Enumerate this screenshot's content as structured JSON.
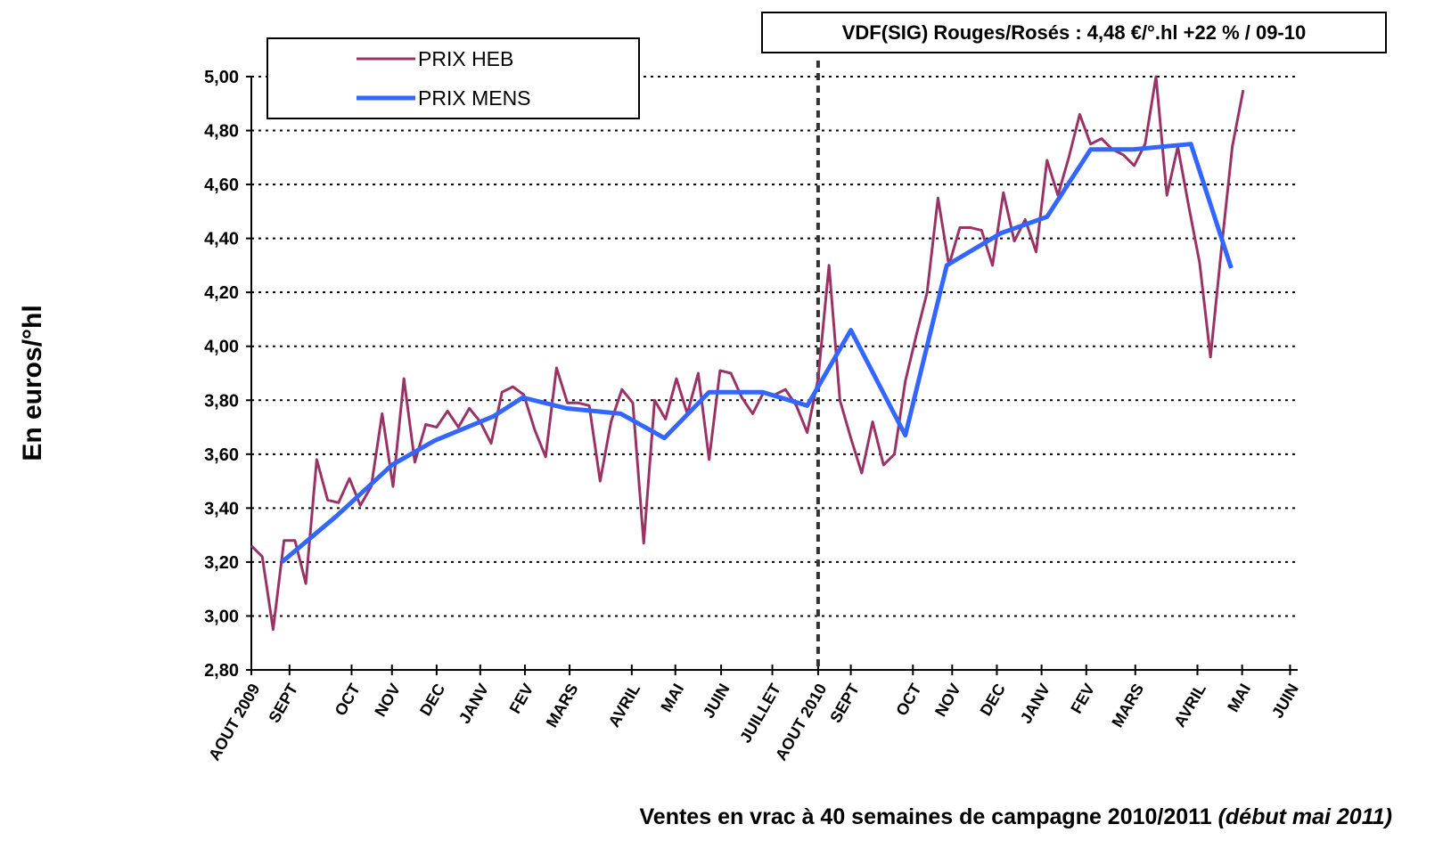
{
  "chart_data": {
    "type": "line",
    "annotation": "VDF(SIG) Rouges/Rosés : 4,48 €/°.hl +22 % / 09-10",
    "ylabel": "En euros/°hl",
    "xlabel": "Ventes en vrac à 40 semaines de campagne 2010/2011",
    "xlabel_note": "(début mai 2011)",
    "xlim": [
      0,
      96
    ],
    "xticks": [
      {
        "value": 0,
        "label": "AOUT 2009"
      },
      {
        "value": 3.5,
        "label": "SEPT"
      },
      {
        "value": 9.2,
        "label": "OCT"
      },
      {
        "value": 12.9,
        "label": "NOV"
      },
      {
        "value": 17,
        "label": "DEC"
      },
      {
        "value": 21,
        "label": "JANV"
      },
      {
        "value": 25.1,
        "label": "FEV"
      },
      {
        "value": 29.2,
        "label": "MARS"
      },
      {
        "value": 34.9,
        "label": "AVRIL"
      },
      {
        "value": 38.9,
        "label": "MAI"
      },
      {
        "value": 43.1,
        "label": "JUIN"
      },
      {
        "value": 47.8,
        "label": "JUILLET"
      },
      {
        "value": 52,
        "label": "AOUT 2010"
      },
      {
        "value": 55,
        "label": "SEPT"
      },
      {
        "value": 60.7,
        "label": "OCT"
      },
      {
        "value": 64.3,
        "label": "NOV"
      },
      {
        "value": 68.4,
        "label": "DEC"
      },
      {
        "value": 72.5,
        "label": "JANV"
      },
      {
        "value": 76.6,
        "label": "FEV"
      },
      {
        "value": 81.1,
        "label": "MARS"
      },
      {
        "value": 86.8,
        "label": "AVRIL"
      },
      {
        "value": 90.9,
        "label": "MAI"
      },
      {
        "value": 95.3,
        "label": "JUIN"
      }
    ],
    "ylim": [
      2.8,
      5
    ],
    "yticks": [
      {
        "value": 2.8,
        "label": "2,80"
      },
      {
        "value": 3,
        "label": "3,00"
      },
      {
        "value": 3.2,
        "label": "3,20"
      },
      {
        "value": 3.4,
        "label": "3,40"
      },
      {
        "value": 3.6,
        "label": "3,60"
      },
      {
        "value": 3.8,
        "label": "3,80"
      },
      {
        "value": 4,
        "label": "4,00"
      },
      {
        "value": 4.2,
        "label": "4,20"
      },
      {
        "value": 4.4,
        "label": "4,40"
      },
      {
        "value": 4.6,
        "label": "4,60"
      },
      {
        "value": 4.8,
        "label": "4,80"
      },
      {
        "value": 5,
        "label": "5,00"
      }
    ],
    "grid": true,
    "vline_x": 52,
    "legend": "top-left",
    "series": [
      {
        "name": "PRIX HEB",
        "color": "#993366",
        "x": [
          0,
          1,
          2,
          3,
          4,
          5,
          6,
          7,
          8,
          9,
          10,
          11,
          12,
          13,
          14,
          15,
          16,
          17,
          18,
          19,
          20,
          21,
          22,
          23,
          24,
          25,
          26,
          27,
          28,
          29,
          30,
          31,
          32,
          33,
          34,
          35,
          36,
          37,
          38,
          39,
          40,
          41,
          42,
          43,
          44,
          45,
          46,
          47,
          48,
          49,
          50,
          51,
          52,
          53,
          54,
          55,
          56,
          57,
          58,
          59,
          60,
          61,
          62,
          63,
          64,
          65,
          66,
          67,
          68,
          69,
          70,
          71,
          72,
          73,
          74,
          75,
          76,
          77,
          78,
          79,
          80,
          81,
          82,
          83,
          84,
          85,
          86,
          87,
          88,
          89,
          90,
          91
        ],
        "values": [
          3.26,
          3.22,
          2.95,
          3.28,
          3.28,
          3.12,
          3.58,
          3.43,
          3.42,
          3.51,
          3.41,
          3.48,
          3.75,
          3.48,
          3.88,
          3.57,
          3.71,
          3.7,
          3.76,
          3.7,
          3.77,
          3.72,
          3.64,
          3.83,
          3.85,
          3.82,
          3.69,
          3.59,
          3.92,
          3.79,
          3.79,
          3.78,
          3.5,
          3.72,
          3.84,
          3.79,
          3.27,
          3.8,
          3.73,
          3.88,
          3.75,
          3.9,
          3.58,
          3.91,
          3.9,
          3.81,
          3.75,
          3.83,
          3.82,
          3.84,
          3.78,
          3.68,
          3.88,
          4.3,
          3.8,
          3.66,
          3.53,
          3.72,
          3.56,
          3.6,
          3.87,
          4.04,
          4.2,
          4.55,
          4.3,
          4.44,
          4.44,
          4.43,
          4.3,
          4.57,
          4.39,
          4.47,
          4.35,
          4.69,
          4.56,
          4.7,
          4.86,
          4.75,
          4.77,
          4.73,
          4.71,
          4.67,
          4.75,
          5.0,
          4.56,
          4.74,
          4.52,
          4.31,
          3.96,
          4.36,
          4.74,
          4.95
        ]
      },
      {
        "name": "PRIX MENS",
        "color": "#3366ff",
        "x": [
          2.8,
          7.8,
          12.9,
          16.8,
          22.2,
          24.9,
          28.9,
          33.9,
          37.9,
          42,
          46.9,
          51,
          55,
          60,
          63.8,
          68.8,
          73,
          77,
          80.9,
          86.2,
          89.9
        ],
        "values": [
          3.2,
          3.37,
          3.56,
          3.65,
          3.74,
          3.81,
          3.77,
          3.75,
          3.66,
          3.83,
          3.83,
          3.78,
          4.06,
          3.67,
          4.3,
          4.42,
          4.48,
          4.73,
          4.73,
          4.75,
          4.29
        ]
      }
    ]
  }
}
